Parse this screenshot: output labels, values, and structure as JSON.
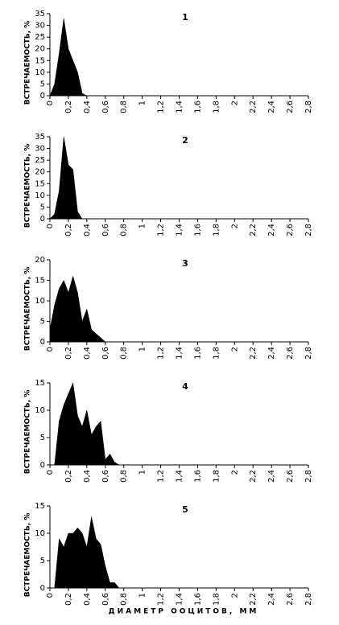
{
  "chart_data": [
    {
      "type": "area",
      "title": "1",
      "ylabel": "ВСТРЕЧАЕМОСТЬ, %",
      "color": "#000000",
      "x": [
        0,
        0.05,
        0.1,
        0.15,
        0.2,
        0.25,
        0.3,
        0.35,
        0.4
      ],
      "values": [
        0,
        5,
        18,
        33,
        20,
        15,
        10,
        1,
        0
      ],
      "xlim": [
        0,
        2.8
      ],
      "ylim": [
        0,
        35
      ],
      "yticks": [
        0,
        5,
        10,
        15,
        20,
        25,
        30,
        35
      ],
      "xticks": [
        0,
        {
          "value": 0.2,
          "label": "0,2"
        },
        {
          "value": 0.4,
          "label": "0,4"
        },
        {
          "value": 0.6,
          "label": "0,6"
        },
        {
          "value": 0.8,
          "label": "0,8"
        },
        1,
        {
          "value": 1.2,
          "label": "1,2"
        },
        {
          "value": 1.4,
          "label": "1,4"
        },
        {
          "value": 1.6,
          "label": "1,6"
        },
        {
          "value": 1.8,
          "label": "1,8"
        },
        2,
        {
          "value": 2.2,
          "label": "2,2"
        },
        {
          "value": 2.4,
          "label": "2,4"
        },
        {
          "value": 2.6,
          "label": "2,6"
        },
        {
          "value": 2.8,
          "label": "2,8"
        }
      ]
    },
    {
      "type": "area",
      "title": "2",
      "ylabel": "ВСТРЕЧАЕМОСТЬ, %",
      "color": "#000000",
      "x": [
        0,
        0.05,
        0.1,
        0.15,
        0.2,
        0.25,
        0.3,
        0.35
      ],
      "values": [
        0,
        2,
        12,
        35,
        23,
        21,
        3,
        0
      ],
      "xlim": [
        0,
        2.8
      ],
      "ylim": [
        0,
        35
      ],
      "yticks": [
        0,
        5,
        10,
        15,
        20,
        25,
        30,
        35
      ],
      "xticks": [
        0,
        {
          "value": 0.2,
          "label": "0,2"
        },
        {
          "value": 0.4,
          "label": "0,4"
        },
        {
          "value": 0.6,
          "label": "0,6"
        },
        {
          "value": 0.8,
          "label": "0,8"
        },
        1,
        {
          "value": 1.2,
          "label": "1,2"
        },
        {
          "value": 1.4,
          "label": "1,4"
        },
        {
          "value": 1.6,
          "label": "1,6"
        },
        {
          "value": 1.8,
          "label": "1,8"
        },
        2,
        {
          "value": 2.2,
          "label": "2,2"
        },
        {
          "value": 2.4,
          "label": "2,4"
        },
        {
          "value": 2.6,
          "label": "2,6"
        },
        {
          "value": 2.8,
          "label": "2,8"
        }
      ]
    },
    {
      "type": "area",
      "title": "3",
      "ylabel": "ВСТРЕЧАЕМОСТЬ, %",
      "color": "#000000",
      "x": [
        0,
        0.05,
        0.1,
        0.15,
        0.2,
        0.25,
        0.3,
        0.35,
        0.4,
        0.45,
        0.5,
        0.55,
        0.6
      ],
      "values": [
        3,
        9,
        13,
        15,
        12,
        16,
        12,
        5,
        8,
        3,
        2,
        1,
        0
      ],
      "xlim": [
        0,
        2.8
      ],
      "ylim": [
        0,
        20
      ],
      "yticks": [
        0,
        5,
        10,
        15,
        20
      ],
      "xticks": [
        0,
        {
          "value": 0.2,
          "label": "0,2"
        },
        {
          "value": 0.4,
          "label": "0,4"
        },
        {
          "value": 0.6,
          "label": "0,6"
        },
        {
          "value": 0.8,
          "label": "0,8"
        },
        1,
        {
          "value": 1.2,
          "label": "1,2"
        },
        {
          "value": 1.4,
          "label": "1,4"
        },
        {
          "value": 1.6,
          "label": "1,6"
        },
        {
          "value": 1.8,
          "label": "1,8"
        },
        2,
        {
          "value": 2.2,
          "label": "2,2"
        },
        {
          "value": 2.4,
          "label": "2,4"
        },
        {
          "value": 2.6,
          "label": "2,6"
        },
        {
          "value": 2.8,
          "label": "2,8"
        }
      ]
    },
    {
      "type": "area",
      "title": "4",
      "ylabel": "ВСТРЕЧАЕМОСТЬ, %",
      "color": "#000000",
      "x": [
        0,
        0.05,
        0.1,
        0.15,
        0.2,
        0.25,
        0.3,
        0.35,
        0.4,
        0.45,
        0.5,
        0.55,
        0.6,
        0.65,
        0.7,
        0.75
      ],
      "values": [
        0,
        0,
        8,
        11,
        13,
        15,
        9,
        7,
        10,
        5.5,
        7,
        8,
        1,
        2,
        0.5,
        0
      ],
      "xlim": [
        0,
        2.8
      ],
      "ylim": [
        0,
        15
      ],
      "yticks": [
        0,
        5,
        10,
        15
      ],
      "xticks": [
        0,
        {
          "value": 0.2,
          "label": "0,2"
        },
        {
          "value": 0.4,
          "label": "0,4"
        },
        {
          "value": 0.6,
          "label": "0,6"
        },
        {
          "value": 0.8,
          "label": "0,8"
        },
        1,
        {
          "value": 1.2,
          "label": "1,2"
        },
        {
          "value": 1.4,
          "label": "1,4"
        },
        {
          "value": 1.6,
          "label": "1,6"
        },
        {
          "value": 1.8,
          "label": "1,8"
        },
        2,
        {
          "value": 2.2,
          "label": "2,2"
        },
        {
          "value": 2.4,
          "label": "2,4"
        },
        {
          "value": 2.6,
          "label": "2,6"
        },
        {
          "value": 2.8,
          "label": "2,8"
        }
      ]
    },
    {
      "type": "area",
      "title": "5",
      "ylabel": "ВСТРЕЧАЕМОСТЬ, %",
      "xlabel": "ДИАМЕТР ООЦИТОВ, ММ",
      "color": "#000000",
      "x": [
        0,
        0.05,
        0.1,
        0.15,
        0.2,
        0.25,
        0.3,
        0.35,
        0.4,
        0.45,
        0.5,
        0.55,
        0.6,
        0.65,
        0.7,
        0.75
      ],
      "values": [
        0,
        0,
        9,
        7.5,
        10,
        10,
        11,
        10,
        7.5,
        13,
        9,
        8,
        4,
        1,
        1,
        0
      ],
      "xlim": [
        0,
        2.8
      ],
      "ylim": [
        0,
        15
      ],
      "yticks": [
        0,
        5,
        10,
        15
      ],
      "xticks": [
        0,
        {
          "value": 0.2,
          "label": "0,2"
        },
        {
          "value": 0.4,
          "label": "0,4"
        },
        {
          "value": 0.6,
          "label": "0,6"
        },
        {
          "value": 0.8,
          "label": "0,8"
        },
        1,
        {
          "value": 1.2,
          "label": "1,2"
        },
        {
          "value": 1.4,
          "label": "1,4"
        },
        {
          "value": 1.6,
          "label": "1,6"
        },
        {
          "value": 1.8,
          "label": "1,8"
        },
        2,
        {
          "value": 2.2,
          "label": "2,2"
        },
        {
          "value": 2.4,
          "label": "2,4"
        },
        {
          "value": 2.6,
          "label": "2,6"
        },
        {
          "value": 2.8,
          "label": "2,8"
        }
      ]
    }
  ]
}
